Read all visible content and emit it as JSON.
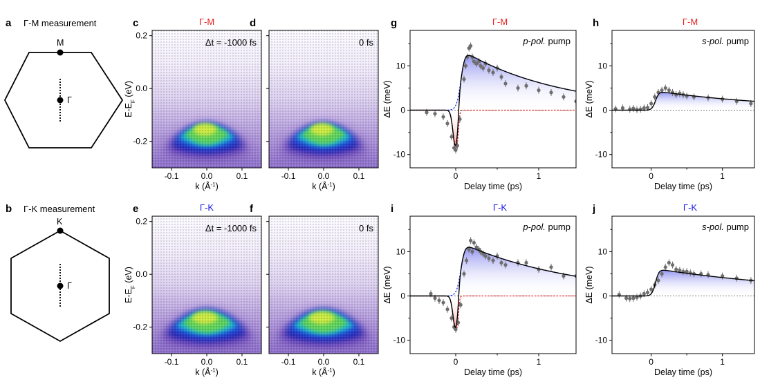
{
  "colors": {
    "gm": "#e8201c",
    "gk": "#1a1ae6",
    "red_dash": "#e8201c",
    "blue_dash": "#2233ee",
    "point": "#6e6e6e",
    "fit": "#000000",
    "zero": "#7a7a7a"
  },
  "panel_a": {
    "letter": "a",
    "caption": "Γ-M measurement",
    "vertex": "M",
    "center": "Γ"
  },
  "panel_b": {
    "letter": "b",
    "caption": "Γ-K measurement",
    "vertex": "K",
    "center": "Γ"
  },
  "chart_data": [
    {
      "id": "c",
      "type": "heatmap",
      "letter": "c",
      "title": "Γ-M",
      "title_color": "gm",
      "annotation": "Δt = -1000 fs",
      "xlabel": "k (Å⁻¹)",
      "ylabel": "E-EF (eV)",
      "ylabel_main": "E-E",
      "ylabel_sub": "F",
      "ylabel_tail": " (eV)",
      "xlim": [
        -0.155,
        0.155
      ],
      "ylim": [
        -0.3,
        0.22
      ],
      "xticks": [
        "-0.1",
        "0.0",
        "0.1"
      ],
      "yticks": [
        "0.2",
        "0.0",
        "-0.2"
      ],
      "band": {
        "k0": 0.0,
        "kwidth": 0.1,
        "e_peak": -0.16,
        "e_edge": -0.24,
        "colormap": [
          "white",
          "purple",
          "blue",
          "cyan",
          "green",
          "yellow"
        ]
      }
    },
    {
      "id": "d",
      "type": "heatmap",
      "letter": "d",
      "annotation": "0 fs",
      "xlabel": "k (Å⁻¹)",
      "xlim": [
        -0.155,
        0.155
      ],
      "ylim": [
        -0.3,
        0.22
      ],
      "xticks": [
        "-0.1",
        "0.0",
        "0.1"
      ],
      "band": {
        "k0": 0.0,
        "kwidth": 0.1,
        "e_peak": -0.16,
        "e_edge": -0.24
      }
    },
    {
      "id": "e",
      "type": "heatmap",
      "letter": "e",
      "title": "Γ-K",
      "title_color": "gk",
      "annotation": "Δt = -1000 fs",
      "xlabel": "k (Å⁻¹)",
      "ylabel": "E-EF (eV)",
      "ylabel_main": "E-E",
      "ylabel_sub": "F",
      "ylabel_tail": " (eV)",
      "xlim": [
        -0.155,
        0.155
      ],
      "ylim": [
        -0.3,
        0.22
      ],
      "xticks": [
        "-0.1",
        "0.0",
        "0.1"
      ],
      "yticks": [
        "0.2",
        "0.0",
        "-0.2"
      ],
      "band": {
        "k0": 0.0,
        "kwidth": 0.11,
        "e_peak": -0.17,
        "e_edge": -0.25
      }
    },
    {
      "id": "f",
      "type": "heatmap",
      "letter": "f",
      "annotation": "0 fs",
      "xlabel": "k (Å⁻¹)",
      "xlim": [
        -0.155,
        0.155
      ],
      "ylim": [
        -0.3,
        0.22
      ],
      "xticks": [
        "-0.1",
        "0.0",
        "0.1"
      ],
      "band": {
        "k0": 0.0,
        "kwidth": 0.11,
        "e_peak": -0.17,
        "e_edge": -0.25
      }
    },
    {
      "id": "g",
      "type": "scatter",
      "letter": "g",
      "title": "Γ-M",
      "title_color": "gm",
      "pump_pol": "p-pol.",
      "pump_word": " pump",
      "xlabel": "Delay time (ps)",
      "ylabel": "ΔE (meV)",
      "xlim": [
        -0.55,
        1.45
      ],
      "ylim": [
        -13,
        18
      ],
      "xticks": [
        0,
        1
      ],
      "yticks": [
        -10,
        0,
        10
      ],
      "fit": {
        "dip": 9,
        "rise": 13,
        "tau": 1.2
      },
      "series": [
        {
          "points": [
            [
              -0.35,
              -0.5
            ],
            [
              -0.25,
              -0.8
            ],
            [
              -0.15,
              -1.5
            ],
            [
              -0.1,
              -3
            ],
            [
              -0.05,
              -6
            ],
            [
              -0.02,
              -8.5
            ],
            [
              0.0,
              -9
            ],
            [
              0.02,
              -8
            ],
            [
              0.05,
              -2
            ],
            [
              0.1,
              7
            ],
            [
              0.12,
              10
            ],
            [
              0.14,
              12
            ],
            [
              0.16,
              14
            ],
            [
              0.18,
              14.5
            ],
            [
              0.2,
              12
            ],
            [
              0.22,
              11
            ],
            [
              0.25,
              10.5
            ],
            [
              0.28,
              11
            ],
            [
              0.3,
              10
            ],
            [
              0.33,
              9.5
            ],
            [
              0.36,
              10.5
            ],
            [
              0.4,
              9
            ],
            [
              0.45,
              8.5
            ],
            [
              0.5,
              9.5
            ],
            [
              0.55,
              7.5
            ],
            [
              0.6,
              6
            ],
            [
              0.75,
              5
            ],
            [
              0.85,
              5.5
            ],
            [
              1.0,
              4.5
            ],
            [
              1.15,
              4
            ],
            [
              1.3,
              3
            ],
            [
              1.45,
              2
            ]
          ]
        }
      ]
    },
    {
      "id": "h",
      "type": "scatter",
      "letter": "h",
      "title": "Γ-M",
      "title_color": "gm",
      "pump_pol": "s-pol.",
      "pump_word": " pump",
      "xlabel": "Delay time (ps)",
      "ylabel": "ΔE (meV)",
      "xlim": [
        -0.55,
        1.45
      ],
      "ylim": [
        -13,
        18
      ],
      "xticks": [
        0,
        1
      ],
      "yticks": [
        -10,
        0,
        10
      ],
      "fit": {
        "dip": 0,
        "rise": 4.2,
        "tau": 1.8
      },
      "series": [
        {
          "points": [
            [
              -0.5,
              0.3
            ],
            [
              -0.4,
              0.5
            ],
            [
              -0.3,
              0.2
            ],
            [
              -0.25,
              0.4
            ],
            [
              -0.2,
              0.1
            ],
            [
              -0.15,
              0.2
            ],
            [
              -0.1,
              0.5
            ],
            [
              -0.05,
              0.6
            ],
            [
              0.0,
              1.5
            ],
            [
              0.05,
              3
            ],
            [
              0.1,
              4
            ],
            [
              0.15,
              4.5
            ],
            [
              0.2,
              5
            ],
            [
              0.25,
              4.5
            ],
            [
              0.3,
              4
            ],
            [
              0.35,
              3.5
            ],
            [
              0.4,
              3.8
            ],
            [
              0.45,
              3.5
            ],
            [
              0.5,
              3.2
            ],
            [
              0.6,
              3
            ],
            [
              0.8,
              2.8
            ],
            [
              1.0,
              2.5
            ],
            [
              1.2,
              2
            ],
            [
              1.4,
              1.5
            ]
          ]
        }
      ]
    },
    {
      "id": "i",
      "type": "scatter",
      "letter": "i",
      "title": "Γ-K",
      "title_color": "gk",
      "pump_pol": "p-pol.",
      "pump_word": " pump",
      "xlabel": "Delay time (ps)",
      "ylabel": "ΔE (meV)",
      "xlim": [
        -0.55,
        1.45
      ],
      "ylim": [
        -13,
        18
      ],
      "xticks": [
        0,
        1
      ],
      "yticks": [
        -10,
        0,
        10
      ],
      "fit": {
        "dip": 8,
        "rise": 11.5,
        "tau": 1.4
      },
      "series": [
        {
          "points": [
            [
              -0.3,
              0.5
            ],
            [
              -0.25,
              -0.5
            ],
            [
              -0.2,
              -1
            ],
            [
              -0.15,
              -1.5
            ],
            [
              -0.1,
              -3
            ],
            [
              -0.05,
              -5
            ],
            [
              -0.02,
              -7
            ],
            [
              0.0,
              -7.5
            ],
            [
              0.03,
              -6
            ],
            [
              0.06,
              -2
            ],
            [
              0.1,
              5
            ],
            [
              0.13,
              8
            ],
            [
              0.16,
              10.5
            ],
            [
              0.18,
              12.5
            ],
            [
              0.2,
              10
            ],
            [
              0.22,
              12
            ],
            [
              0.25,
              11
            ],
            [
              0.28,
              10.5
            ],
            [
              0.3,
              10
            ],
            [
              0.33,
              9.5
            ],
            [
              0.36,
              9
            ],
            [
              0.4,
              8.5
            ],
            [
              0.45,
              8
            ],
            [
              0.5,
              9
            ],
            [
              0.55,
              7.5
            ],
            [
              0.6,
              7
            ],
            [
              0.75,
              7.5
            ],
            [
              0.85,
              7.5
            ],
            [
              1.0,
              6
            ],
            [
              1.15,
              6.5
            ],
            [
              1.3,
              4.5
            ],
            [
              1.45,
              4.5
            ]
          ]
        }
      ]
    },
    {
      "id": "j",
      "type": "scatter",
      "letter": "j",
      "title": "Γ-K",
      "title_color": "gk",
      "pump_pol": "s-pol.",
      "pump_word": " pump",
      "xlabel": "Delay time (ps)",
      "ylabel": "ΔE (meV)",
      "xlim": [
        -0.55,
        1.45
      ],
      "ylim": [
        -13,
        18
      ],
      "xticks": [
        0,
        1
      ],
      "yticks": [
        -10,
        0,
        10
      ],
      "fit": {
        "dip": 0,
        "rise": 6,
        "tau": 2.4
      },
      "series": [
        {
          "points": [
            [
              -0.45,
              0.3
            ],
            [
              -0.35,
              -0.5
            ],
            [
              -0.3,
              -0.6
            ],
            [
              -0.25,
              -0.5
            ],
            [
              -0.2,
              -0.3
            ],
            [
              -0.15,
              0
            ],
            [
              -0.1,
              0.5
            ],
            [
              -0.05,
              0.8
            ],
            [
              0.0,
              1.5
            ],
            [
              0.05,
              2.5
            ],
            [
              0.1,
              3.5
            ],
            [
              0.15,
              5
            ],
            [
              0.2,
              6.5
            ],
            [
              0.25,
              7.5
            ],
            [
              0.3,
              7
            ],
            [
              0.35,
              6
            ],
            [
              0.4,
              5.8
            ],
            [
              0.45,
              5.5
            ],
            [
              0.5,
              5.5
            ],
            [
              0.55,
              5.2
            ],
            [
              0.6,
              5
            ],
            [
              0.7,
              5
            ],
            [
              0.8,
              4.8
            ],
            [
              1.0,
              4.5
            ],
            [
              1.2,
              4
            ],
            [
              1.4,
              3.5
            ]
          ]
        }
      ]
    }
  ]
}
